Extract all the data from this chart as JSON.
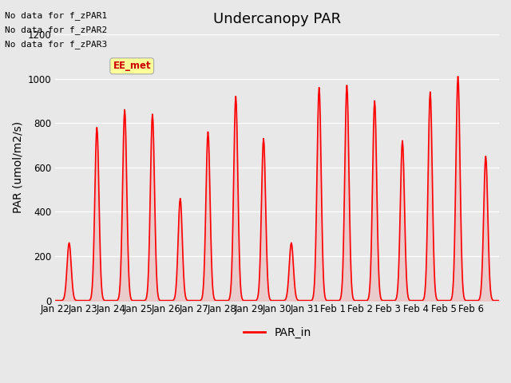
{
  "title": "Undercanopy PAR",
  "ylabel": "PAR (umol/m2/s)",
  "ylim": [
    0,
    1200
  ],
  "yticks": [
    0,
    200,
    400,
    600,
    800,
    1000,
    1200
  ],
  "line_color": "#ff0000",
  "line_width": 1.2,
  "bg_color": "#e8e8e8",
  "legend_label": "PAR_in",
  "no_data_texts": [
    "No data for f_zPAR1",
    "No data for f_zPAR2",
    "No data for f_zPAR3"
  ],
  "ee_met_label": "EE_met",
  "xtick_labels": [
    "Jan 22",
    "Jan 23",
    "Jan 24",
    "Jan 25",
    "Jan 26",
    "Jan 27",
    "Jan 28",
    "Jan 29",
    "Jan 30",
    "Jan 31",
    "Feb 1",
    "Feb 2",
    "Feb 3",
    "Feb 4",
    "Feb 5",
    "Feb 6"
  ],
  "day_peaks": [
    260,
    780,
    860,
    840,
    460,
    760,
    920,
    730,
    260,
    960,
    970,
    900,
    720,
    940,
    1010,
    650
  ],
  "title_fontsize": 13,
  "axis_fontsize": 10,
  "tick_fontsize": 8.5
}
